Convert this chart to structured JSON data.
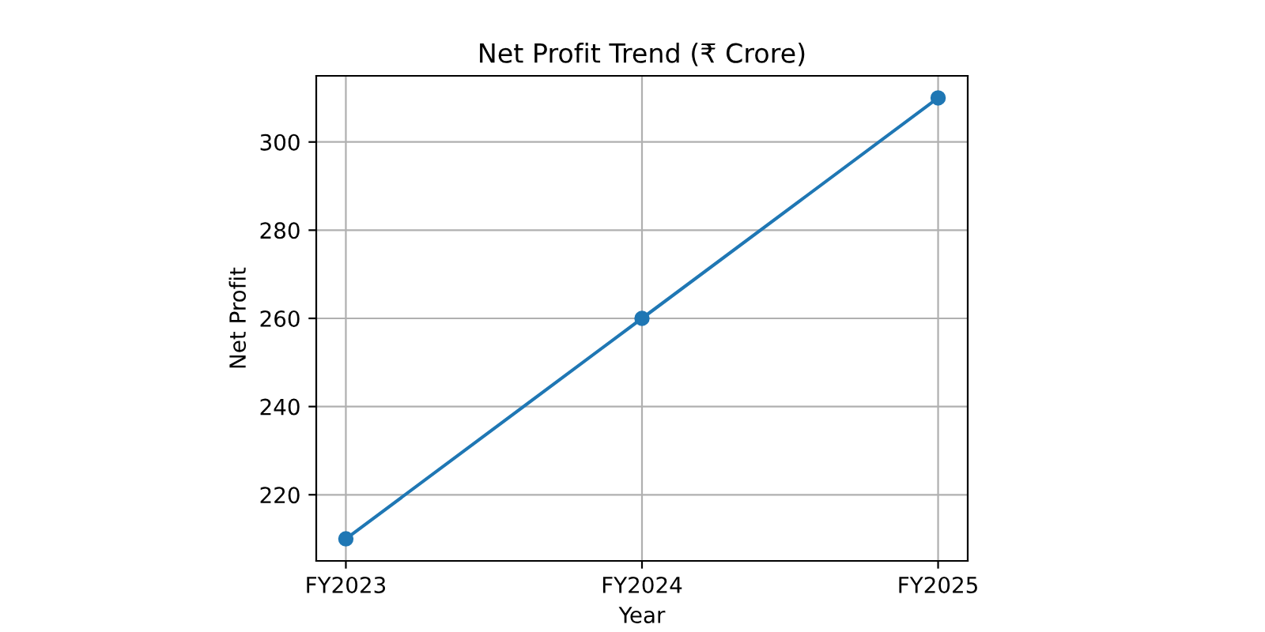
{
  "chart_data": {
    "type": "line",
    "title": "Net Profit Trend (₹ Crore)",
    "xlabel": "Year",
    "ylabel": "Net Profit",
    "categories": [
      "FY2023",
      "FY2024",
      "FY2025"
    ],
    "series": [
      {
        "color": "#1f77b4",
        "values": [
          210,
          260,
          310
        ]
      }
    ],
    "ylim": [
      205,
      315
    ],
    "yticks": [
      220,
      240,
      260,
      280,
      300
    ],
    "grid": true,
    "marker": "circle",
    "line_style": "solid",
    "legend": false
  }
}
